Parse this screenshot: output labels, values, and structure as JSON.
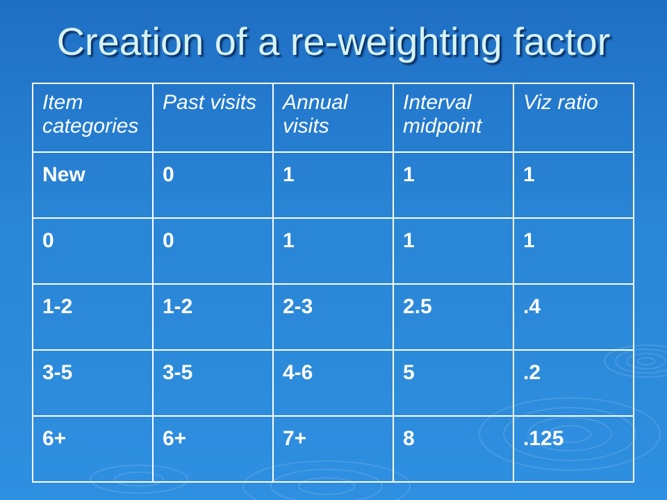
{
  "slide": {
    "title": "Creation of a re-weighting factor"
  },
  "table": {
    "headers": [
      "Item categories",
      "Past visits",
      "Annual visits",
      "Interval midpoint",
      "Viz ratio"
    ],
    "rows": [
      [
        "New",
        "0",
        "1",
        "1",
        "1"
      ],
      [
        "0",
        "0",
        "1",
        "1",
        "1"
      ],
      [
        "1-2",
        "1-2",
        "2-3",
        "2.5",
        ".4"
      ],
      [
        "3-5",
        "3-5",
        "4-6",
        "5",
        ".2"
      ],
      [
        "6+",
        "6+",
        "7+",
        "8",
        ".125"
      ]
    ]
  },
  "colors": {
    "background": "#2a86d6",
    "title_text": "#d6f3f2",
    "table_text": "#ffffff",
    "border": "#ffffff"
  }
}
